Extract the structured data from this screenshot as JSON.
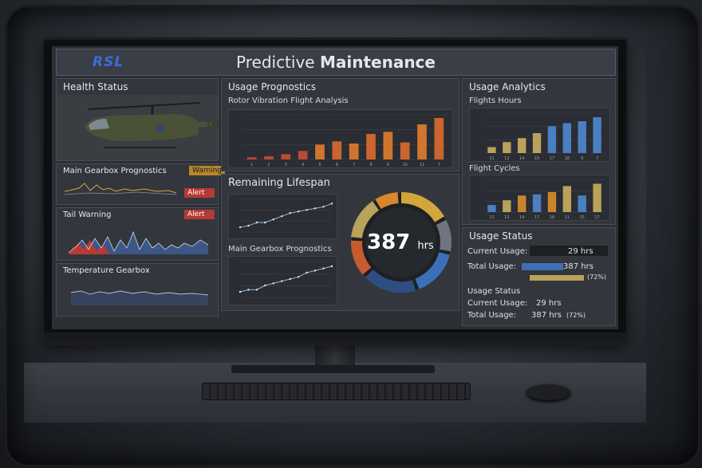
{
  "header": {
    "logo": "RSL",
    "title_light": "Predictive ",
    "title_bold": "Maintenance"
  },
  "health": {
    "title": "Health Status"
  },
  "gearbox_left": {
    "title": "Main Gearbox Prognostics",
    "badge_warning": "Warning",
    "badge_alert": "Alert"
  },
  "tail": {
    "title": "Tail Warning",
    "badge": "Alert"
  },
  "temperature": {
    "title": "Temperature Gearbox"
  },
  "usage_prog": {
    "title": "Usage Prognostics",
    "subtitle": "Rotor Vibration Flight Analysis"
  },
  "lifespan": {
    "title": "Remaining Lifespan",
    "value": "387",
    "unit": "hrs"
  },
  "gearbox_mid": {
    "title": "Main Gearbox Prognostics"
  },
  "analytics": {
    "title": "Usage Analytics",
    "flights_hours": "Flights Hours",
    "flight_cycles": "Flight Cycles"
  },
  "status": {
    "title": "Usage Status",
    "current_label": "Current Usage:",
    "current_value": "29 hrs",
    "total_label": "Total Usage:",
    "total_value": "387 hrs",
    "total_pct": "(72%)",
    "sub_title": "Usage Status",
    "current2_label": "Current Usage:",
    "current2_value": "29 hrs",
    "total2_label": "Total Usage:",
    "total2_value": "387 hrs",
    "total2_pct": "(72%)"
  },
  "colors": {
    "orange": "#d0742e",
    "red": "#b84a36",
    "blue": "#4a7fc2",
    "tan": "#b9a25a",
    "line": "#8fb7e0"
  },
  "chart_data": [
    {
      "type": "bar",
      "title": "Rotor Vibration Flight Analysis",
      "categories": [
        "1",
        "2",
        "3",
        "4",
        "5",
        "6",
        "7",
        "8",
        "9",
        "10",
        "11",
        "7"
      ],
      "values": [
        2,
        3,
        5,
        8,
        14,
        17,
        15,
        24,
        26,
        16,
        33,
        39
      ]
    },
    {
      "type": "bar",
      "title": "Flights Hours",
      "categories": [
        "11",
        "12",
        "14",
        "15",
        "17",
        "18",
        "9",
        "7"
      ],
      "series": [
        {
          "values": [
            6,
            11,
            15,
            20,
            27,
            30,
            32,
            36
          ]
        }
      ]
    },
    {
      "type": "bar",
      "title": "Flight Cycles",
      "categories": [
        "11",
        "12",
        "14",
        "17",
        "18",
        "11",
        "15",
        "17"
      ],
      "series": [
        {
          "values": [
            6,
            10,
            14,
            15,
            17,
            22,
            14,
            24
          ]
        }
      ]
    },
    {
      "type": "line",
      "title": "Remaining Lifespan",
      "values": [
        3,
        4,
        6,
        6,
        8,
        10,
        12,
        13,
        14,
        15,
        16,
        18
      ]
    },
    {
      "type": "line",
      "title": "Main Gearbox Prognostics",
      "values": [
        3,
        4,
        4,
        6,
        7,
        8,
        9,
        10,
        12,
        13,
        14,
        15
      ]
    }
  ]
}
